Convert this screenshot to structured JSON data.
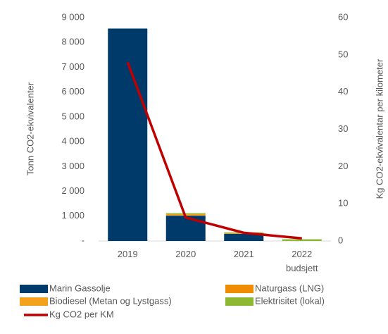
{
  "chart_data": {
    "type": "bar",
    "y_label": "Tonn CO2-ekvivalenter",
    "y2_label": "Kg CO2-ekvivalentar per kilometer",
    "categories": [
      "2019",
      "2020",
      "2021",
      "2022 budsjett"
    ],
    "stacked": true,
    "series": [
      {
        "name": "Marin Gassolje",
        "color": "#003a6b",
        "values": [
          8560,
          1020,
          290,
          0
        ]
      },
      {
        "name": "Naturgass (LNG)",
        "color": "#f08c00",
        "values": [
          0,
          0,
          0,
          0
        ]
      },
      {
        "name": "Biodiesel (Metan og Lystgass)",
        "color": "#f4a11d",
        "values": [
          0,
          60,
          30,
          0
        ]
      },
      {
        "name": "Elektrisitet (lokal)",
        "color": "#8db832",
        "values": [
          0,
          40,
          30,
          70
        ]
      },
      {
        "name": "Kg CO2 per KM",
        "color": "#c00000",
        "type": "line",
        "axis": "y2",
        "values": [
          48,
          6.3,
          2.2,
          0.7
        ]
      }
    ],
    "ylim": [
      0,
      9000
    ],
    "yticks": [
      {
        "value": 0,
        "label": "-"
      },
      {
        "value": 1000,
        "label": "1 000"
      },
      {
        "value": 2000,
        "label": "2 000"
      },
      {
        "value": 3000,
        "label": "3 000"
      },
      {
        "value": 4000,
        "label": "4 000"
      },
      {
        "value": 5000,
        "label": "5 000"
      },
      {
        "value": 6000,
        "label": "6 000"
      },
      {
        "value": 7000,
        "label": "7 000"
      },
      {
        "value": 8000,
        "label": "8 000"
      },
      {
        "value": 9000,
        "label": "9 000"
      }
    ],
    "y2lim": [
      0,
      60
    ],
    "y2ticks": [
      0,
      10,
      20,
      30,
      40,
      50,
      60
    ]
  }
}
